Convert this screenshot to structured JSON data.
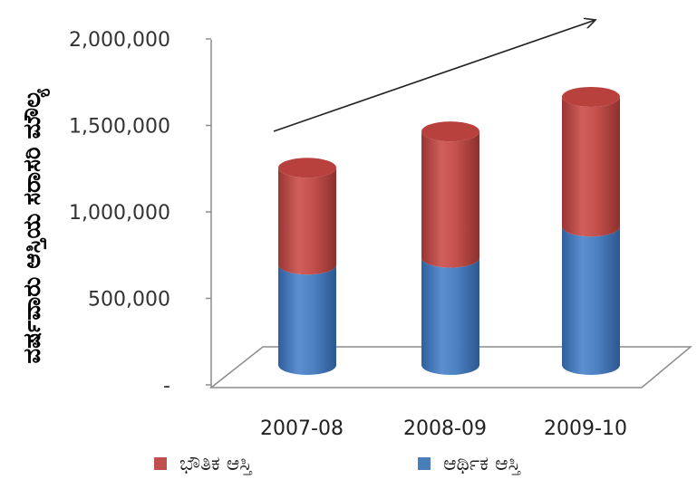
{
  "chart_data": {
    "type": "bar",
    "stacked": true,
    "style": "3d-cylinder",
    "title": "",
    "xlabel": "",
    "ylabel": "ವರ್ಷವಾರು ಆಸ್ತಿಯ ಸರಾಸರಿ ಮೌಲ್ಯ",
    "categories": [
      "2007-08",
      "2008-09",
      "2009-10"
    ],
    "series": [
      {
        "name": "ಆರ್ಥಿಕ ಆಸ್ತಿ",
        "values": [
          580000,
          620000,
          800000
        ],
        "color": "#4a7ebb"
      },
      {
        "name": "ಭೌತಿಕ ಆಸ್ತಿ",
        "values": [
          560000,
          730000,
          750000
        ],
        "color": "#c0504d"
      }
    ],
    "legend": [
      {
        "name": "ಭೌತಿಕ ಆಸ್ತಿ",
        "color": "#c0504d"
      },
      {
        "name": "ಆರ್ಥಿಕ ಆಸ್ತಿ",
        "color": "#4a7ebb"
      }
    ],
    "ylim": [
      0,
      2000000
    ],
    "yticks": [
      {
        "value": 0,
        "label": "-"
      },
      {
        "value": 500000,
        "label": "500,000"
      },
      {
        "value": 1000000,
        "label": "1,000,000"
      },
      {
        "value": 1500000,
        "label": "1,500,000"
      },
      {
        "value": 2000000,
        "label": "2,000,000"
      }
    ],
    "legend_position": "bottom",
    "grid": false,
    "trend_arrow": true
  }
}
